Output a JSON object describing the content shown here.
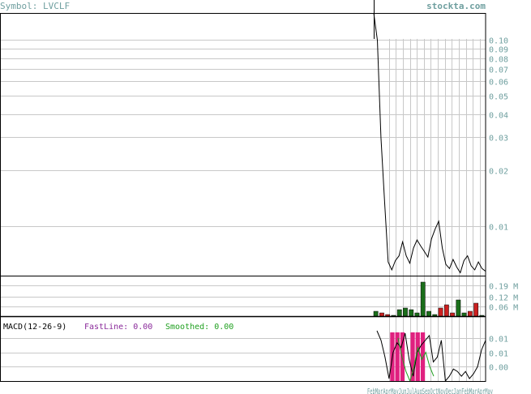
{
  "header": {
    "symbol_label": "Symbol: LVCLF",
    "site": "stockta.com"
  },
  "colors": {
    "frame": "#000000",
    "grid": "#c8c8c8",
    "axis_text": "#6f9f9f",
    "price_line": "#000000",
    "volume_up": "#1a6e1a",
    "volume_down": "#cc2020",
    "macd_hist": "#e0207f",
    "fast_line": "#000000",
    "smoothed_line": "#20a020",
    "fast_label": "#8a2a9a",
    "smoothed_label": "#20a020"
  },
  "chart_data": [
    {
      "panel": "price",
      "type": "line",
      "scale": "log",
      "y_tick_labels": [
        "0.10",
        "0.09",
        "0.08",
        "0.07",
        "0.06",
        "0.05",
        "0.04",
        "0.03",
        "0.02",
        "0.01"
      ],
      "y_tick_values": [
        0.1,
        0.09,
        0.08,
        0.07,
        0.06,
        0.05,
        0.04,
        0.03,
        0.02,
        0.01
      ],
      "ylim": [
        0.0054,
        0.14
      ],
      "x_tick_labels": [
        "Feb",
        "Mar",
        "Apr",
        "May",
        "Jun",
        "Jul",
        "Aug",
        "Sep",
        "Oct",
        "Nov",
        "Dec",
        "Jan",
        "Feb",
        "Mar",
        "Apr",
        "May"
      ],
      "x_tick_text": "FebMarAprMayJunJulAugSepOctNovDecJanFebMarAprMay",
      "values": [
        0.14,
        0.1,
        0.03,
        0.0135,
        0.0064,
        0.0058,
        0.0065,
        0.0069,
        0.0082,
        0.0069,
        0.0063,
        0.0076,
        0.0084,
        0.0078,
        0.0073,
        0.0068,
        0.0085,
        0.0096,
        0.0106,
        0.0076,
        0.0062,
        0.0059,
        0.0066,
        0.006,
        0.0056,
        0.0065,
        0.0069,
        0.0061,
        0.0058,
        0.0064,
        0.0059,
        0.0057
      ]
    },
    {
      "panel": "volume",
      "type": "bar",
      "y_tick_labels": [
        "0.19 M",
        "0.12 M",
        "0.06 M"
      ],
      "y_tick_values": [
        0.19,
        0.12,
        0.06
      ],
      "ylim": [
        0,
        0.25
      ],
      "bars": [
        {
          "v": 0.03,
          "up": true
        },
        {
          "v": 0.02,
          "up": false
        },
        {
          "v": 0.01,
          "up": false
        },
        {
          "v": 0.0,
          "up": true
        },
        {
          "v": 0.04,
          "up": true
        },
        {
          "v": 0.05,
          "up": true
        },
        {
          "v": 0.04,
          "up": true
        },
        {
          "v": 0.02,
          "up": true
        },
        {
          "v": 0.21,
          "up": true
        },
        {
          "v": 0.03,
          "up": true
        },
        {
          "v": 0.01,
          "up": true
        },
        {
          "v": 0.05,
          "up": false
        },
        {
          "v": 0.07,
          "up": false
        },
        {
          "v": 0.02,
          "up": false
        },
        {
          "v": 0.1,
          "up": true
        },
        {
          "v": 0.02,
          "up": true
        },
        {
          "v": 0.03,
          "up": false
        },
        {
          "v": 0.08,
          "up": false
        },
        {
          "v": 0.0,
          "up": true
        }
      ]
    },
    {
      "panel": "macd",
      "type": "line",
      "title": "MACD(12-26-9)",
      "fast_label": "FastLine: 0.00",
      "smoothed_label": "Smoothed: 0.00",
      "y_tick_labels": [
        "0.01",
        "0.01",
        "0.00"
      ],
      "y_tick_values": [
        0.012,
        0.006,
        0.0
      ],
      "ylim": [
        -0.006,
        0.015
      ],
      "histogram": [
        0,
        -0.006,
        -0.006,
        -0.006,
        0,
        -0.006,
        -0.006,
        -0.006,
        0,
        0,
        0,
        0,
        0,
        0,
        0,
        0,
        0,
        0,
        0,
        0,
        0,
        0
      ],
      "fast_line": [
        0.015,
        0.011,
        0.004,
        -0.005,
        0.006,
        0.01,
        0.008,
        0.014,
        0.003,
        -0.004,
        0.006,
        0.009,
        0.011,
        0.013,
        0.002,
        0.004,
        0.011,
        -0.006,
        -0.004,
        -0.001,
        -0.002,
        -0.004,
        -0.002,
        -0.005,
        -0.003,
        0.0,
        0.007,
        0.011
      ],
      "smoothed_line": [
        0.012,
        0.004,
        -0.002,
        -0.006,
        0.0,
        0.008,
        0.003,
        0.006,
        0.0,
        -0.004
      ]
    }
  ]
}
